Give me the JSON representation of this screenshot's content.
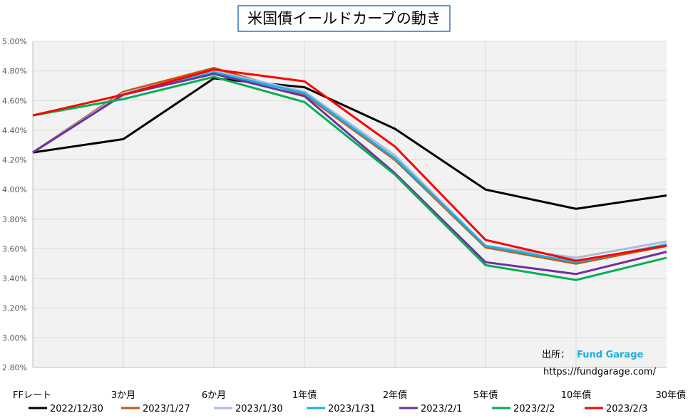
{
  "chart_data": {
    "type": "line",
    "title": "米国債イールドカーブの動き",
    "xlabel": "",
    "ylabel": "",
    "categories": [
      "FFレート",
      "3か月",
      "6か月",
      "1年債",
      "2年債",
      "5年債",
      "10年債",
      "30年債"
    ],
    "ylim": [
      2.8,
      5.0
    ],
    "ytick_step": 0.2,
    "ytick_format": "percent_2dp",
    "grid": true,
    "legend_position": "bottom",
    "series": [
      {
        "name": "2022/12/30",
        "color": "#000000",
        "values": [
          4.25,
          4.34,
          4.75,
          4.69,
          4.41,
          4.0,
          3.87,
          3.96
        ]
      },
      {
        "name": "2023/1/27",
        "color": "#c55a11",
        "values": [
          4.25,
          4.66,
          4.82,
          4.64,
          4.2,
          3.61,
          3.5,
          3.62
        ]
      },
      {
        "name": "2023/1/30",
        "color": "#a9bcdf",
        "values": [
          4.25,
          4.65,
          4.8,
          4.66,
          4.23,
          3.62,
          3.54,
          3.65
        ]
      },
      {
        "name": "2023/1/31",
        "color": "#19b0e0",
        "values": [
          4.25,
          4.64,
          4.79,
          4.65,
          4.21,
          3.62,
          3.51,
          3.63
        ]
      },
      {
        "name": "2023/2/1",
        "color": "#7030a0",
        "values": [
          4.25,
          4.64,
          4.78,
          4.63,
          4.11,
          3.51,
          3.43,
          3.58
        ]
      },
      {
        "name": "2023/2/2",
        "color": "#00b050",
        "values": [
          4.5,
          4.61,
          4.76,
          4.59,
          4.1,
          3.49,
          3.39,
          3.54
        ]
      },
      {
        "name": "2023/2/3",
        "color": "#ff0000",
        "values": [
          4.5,
          4.64,
          4.81,
          4.73,
          4.29,
          3.66,
          3.52,
          3.62
        ]
      }
    ],
    "annotations": {
      "source_label": "出所：",
      "source_name": "Fund Garage",
      "source_url": "https://fundgarage.com/"
    }
  }
}
